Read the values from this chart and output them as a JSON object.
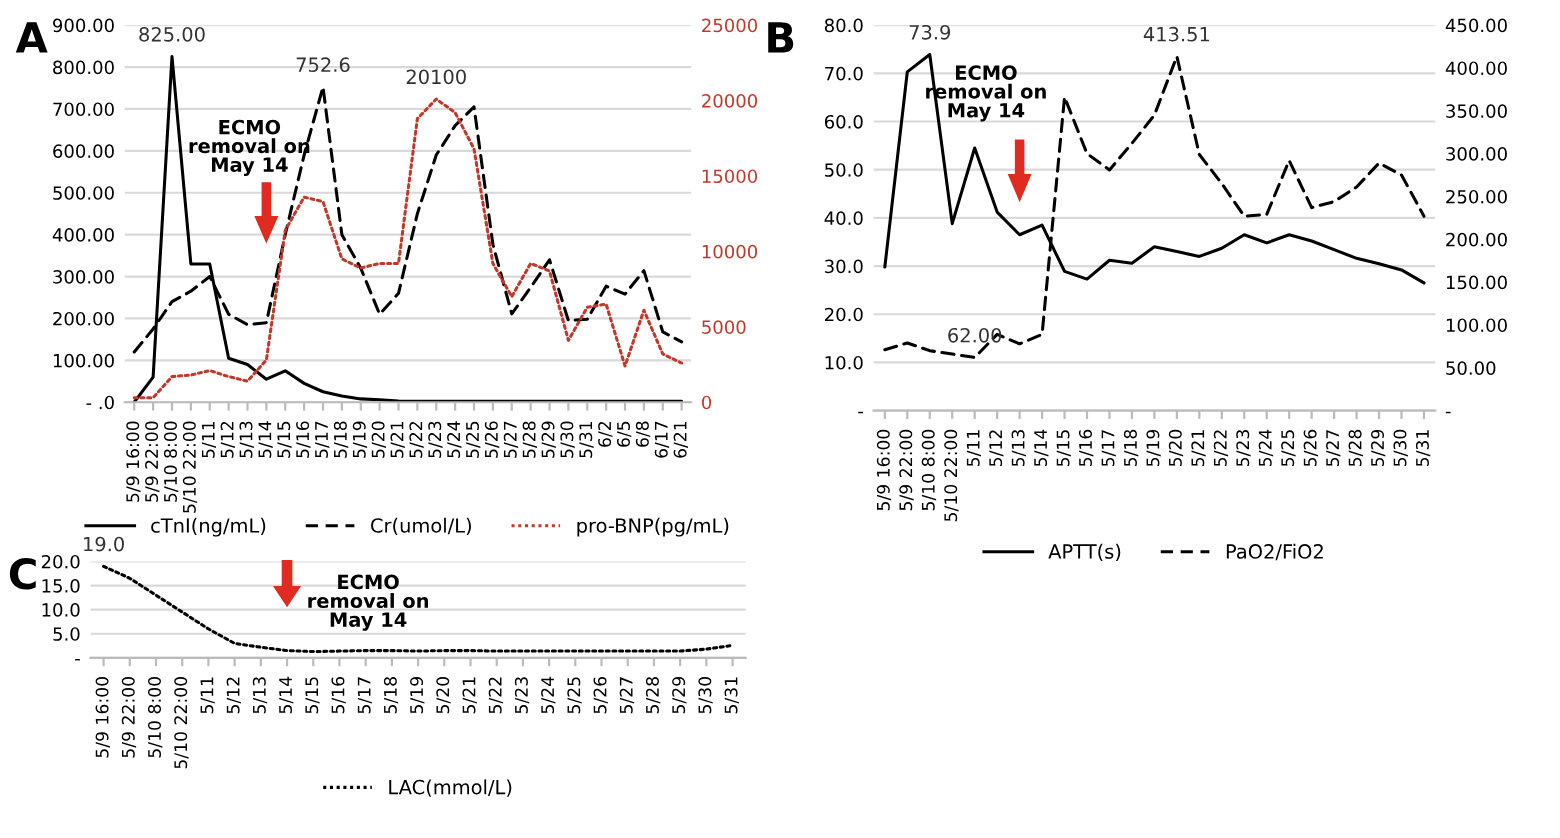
{
  "chart_data": [
    {
      "type": "line",
      "title": "A",
      "categories": [
        "5/9 16:00",
        "5/9 22:00",
        "5/10 8:00",
        "5/10 22:00",
        "5/11",
        "5/12",
        "5/13",
        "5/14",
        "5/15",
        "5/16",
        "5/17",
        "5/18",
        "5/19",
        "5/20",
        "5/21",
        "5/22",
        "5/23",
        "5/24",
        "5/25",
        "5/26",
        "5/27",
        "5/28",
        "5/29",
        "5/30",
        "5/31",
        "6/2",
        "6/5",
        "6/8",
        "6/17",
        "6/21"
      ],
      "series": [
        {
          "name": "cTnI(ng/mL)",
          "color": "#000000",
          "line_style": "solid",
          "values": [
            0,
            60,
            825,
            330,
            330,
            105,
            90,
            55,
            75,
            45,
            25,
            15,
            8,
            6,
            3,
            2,
            2,
            2,
            2,
            2,
            2,
            2,
            2,
            2,
            2,
            2,
            2,
            2,
            2,
            2
          ],
          "value_labels": [
            null,
            null,
            "825.00",
            null,
            null,
            null,
            null,
            null,
            null,
            null,
            null,
            null,
            null,
            null,
            null,
            null,
            null,
            null,
            null,
            null,
            null,
            null,
            null,
            null,
            null,
            null,
            null,
            null,
            null,
            null
          ]
        },
        {
          "name": "Cr(umol/L)",
          "color": "#000000",
          "line_style": "dashed",
          "values": [
            120,
            175,
            240,
            265,
            300,
            210,
            185,
            190,
            400,
            590,
            752.6,
            400,
            320,
            210,
            260,
            450,
            590,
            660,
            705,
            377,
            211,
            274,
            340,
            195,
            198,
            277,
            258,
            314,
            168,
            144
          ],
          "value_labels": [
            null,
            null,
            null,
            null,
            null,
            null,
            null,
            null,
            null,
            null,
            "752.6",
            null,
            null,
            null,
            null,
            null,
            null,
            null,
            null,
            null,
            null,
            null,
            null,
            null,
            null,
            null,
            null,
            null,
            null,
            null
          ]
        },
        {
          "name": "pro-BNP(pg/mL)",
          "color": "#c0392b",
          "line_style": "dotted",
          "axis": "y2",
          "values": [
            300,
            300,
            1700,
            1800,
            2100,
            1700,
            1400,
            2800,
            11400,
            13600,
            13300,
            9500,
            8900,
            9200,
            9200,
            18800,
            20100,
            19200,
            16800,
            9200,
            7000,
            9200,
            8700,
            4100,
            6300,
            6500,
            2400,
            6100,
            3200,
            2600
          ],
          "value_labels": [
            null,
            null,
            null,
            null,
            null,
            null,
            null,
            null,
            null,
            null,
            null,
            null,
            null,
            null,
            null,
            null,
            "20100",
            null,
            null,
            null,
            null,
            null,
            null,
            null,
            null,
            null,
            null,
            null,
            null,
            null
          ]
        }
      ],
      "ylim": [
        0,
        900
      ],
      "yticks": [
        {
          "value": 0,
          "label": "- .0"
        },
        {
          "value": 100,
          "label": "100.00"
        },
        {
          "value": 200,
          "label": "200.00"
        },
        {
          "value": 300,
          "label": "300.00"
        },
        {
          "value": 400,
          "label": "400.00"
        },
        {
          "value": 500,
          "label": "500.00"
        },
        {
          "value": 600,
          "label": "600.00"
        },
        {
          "value": 700,
          "label": "700.00"
        },
        {
          "value": 800,
          "label": "800.00"
        },
        {
          "value": 900,
          "label": "900.00"
        }
      ],
      "y2lim": [
        0,
        25000
      ],
      "y2ticks": [
        0,
        5000,
        10000,
        15000,
        20000,
        25000
      ],
      "grid": "y",
      "legend": "bottom",
      "annotations": [
        "ECMO\nremoval on\nMay 14"
      ]
    },
    {
      "type": "line",
      "title": "B",
      "categories": [
        "5/9 16:00",
        "5/9 22:00",
        "5/10 8:00",
        "5/10 22:00",
        "5/11",
        "5/12",
        "5/13",
        "5/14",
        "5/15",
        "5/16",
        "5/17",
        "5/18",
        "5/19",
        "5/20",
        "5/21",
        "5/22",
        "5/23",
        "5/24",
        "5/25",
        "5/26",
        "5/27",
        "5/28",
        "5/29",
        "5/30",
        "5/31"
      ],
      "series": [
        {
          "name": "APTT(s)",
          "color": "#000000",
          "line_style": "solid",
          "values": [
            29.8,
            70.3,
            73.9,
            38.8,
            54.5,
            41.2,
            36.5,
            38.5,
            28.9,
            27.3,
            31.2,
            30.6,
            34,
            33,
            32,
            33.7,
            36.5,
            34.8,
            36.5,
            35.2,
            33.4,
            31.6,
            30.5,
            29.2,
            26.5
          ],
          "value_labels": [
            null,
            null,
            "73.9",
            null,
            null,
            null,
            null,
            null,
            null,
            null,
            null,
            null,
            null,
            null,
            null,
            null,
            null,
            null,
            null,
            null,
            null,
            null,
            null,
            null,
            null
          ]
        },
        {
          "name": "PaO2/FiO2",
          "color": "#000000",
          "line_style": "dashed",
          "axis": "y2",
          "values": [
            71,
            79,
            70,
            66,
            62,
            89,
            78,
            89,
            366,
            300,
            281,
            312,
            345,
            413.51,
            299,
            265,
            227,
            229,
            292,
            237,
            244,
            261,
            289,
            275,
            227
          ],
          "value_labels": [
            null,
            null,
            null,
            null,
            "62.00",
            null,
            null,
            null,
            null,
            null,
            null,
            null,
            null,
            "413.51",
            null,
            null,
            null,
            null,
            null,
            null,
            null,
            null,
            null,
            null,
            null
          ]
        }
      ],
      "ylim": [
        0,
        80
      ],
      "yticks": [
        {
          "value": 0,
          "label": "-"
        },
        {
          "value": 10,
          "label": "10.0"
        },
        {
          "value": 20,
          "label": "20.0"
        },
        {
          "value": 30,
          "label": "30.0"
        },
        {
          "value": 40,
          "label": "40.0"
        },
        {
          "value": 50,
          "label": "50.0"
        },
        {
          "value": 60,
          "label": "60.0"
        },
        {
          "value": 70,
          "label": "70.0"
        },
        {
          "value": 80,
          "label": "80.0"
        }
      ],
      "y2lim": [
        0,
        450
      ],
      "y2ticks": [
        {
          "value": 0,
          "label": "-"
        },
        {
          "value": 50,
          "label": "50.00"
        },
        {
          "value": 100,
          "label": "100.00"
        },
        {
          "value": 150,
          "label": "150.00"
        },
        {
          "value": 200,
          "label": "200.00"
        },
        {
          "value": 250,
          "label": "250.00"
        },
        {
          "value": 300,
          "label": "300.00"
        },
        {
          "value": 350,
          "label": "350.00"
        },
        {
          "value": 400,
          "label": "400.00"
        },
        {
          "value": 450,
          "label": "450.00"
        }
      ],
      "grid": "y",
      "legend": "bottom",
      "annotations": [
        "ECMO\nremoval on\nMay 14"
      ]
    },
    {
      "type": "line",
      "title": "C",
      "categories": [
        "5/9 16:00",
        "5/9 22:00",
        "5/10 8:00",
        "5/10 22:00",
        "5/11",
        "5/12",
        "5/13",
        "5/14",
        "5/15",
        "5/16",
        "5/17",
        "5/18",
        "5/19",
        "5/20",
        "5/21",
        "5/22",
        "5/23",
        "5/24",
        "5/25",
        "5/26",
        "5/27",
        "5/28",
        "5/29",
        "5/30",
        "5/31"
      ],
      "series": [
        {
          "name": "LAC(mmol/L)",
          "color": "#000000",
          "line_style": "dotted",
          "values": [
            19.0,
            16.5,
            13,
            9.5,
            6,
            3,
            2.2,
            1.5,
            1.3,
            1.4,
            1.5,
            1.5,
            1.4,
            1.5,
            1.5,
            1.4,
            1.4,
            1.4,
            1.4,
            1.4,
            1.4,
            1.4,
            1.4,
            1.8,
            2.6
          ],
          "value_labels": [
            "19.0",
            null,
            null,
            null,
            null,
            null,
            null,
            null,
            null,
            null,
            null,
            null,
            null,
            null,
            null,
            null,
            null,
            null,
            null,
            null,
            null,
            null,
            null,
            null,
            null
          ]
        }
      ],
      "ylim": [
        0,
        20
      ],
      "yticks": [
        {
          "value": 0,
          "label": "-"
        },
        {
          "value": 5,
          "label": "5.0"
        },
        {
          "value": 10,
          "label": "10.0"
        },
        {
          "value": 15,
          "label": "15.0"
        },
        {
          "value": 20,
          "label": "20.0"
        }
      ],
      "grid": "y",
      "legend": "bottom",
      "annotations": [
        "ECMO\nremoval on\nMay 14"
      ]
    }
  ]
}
